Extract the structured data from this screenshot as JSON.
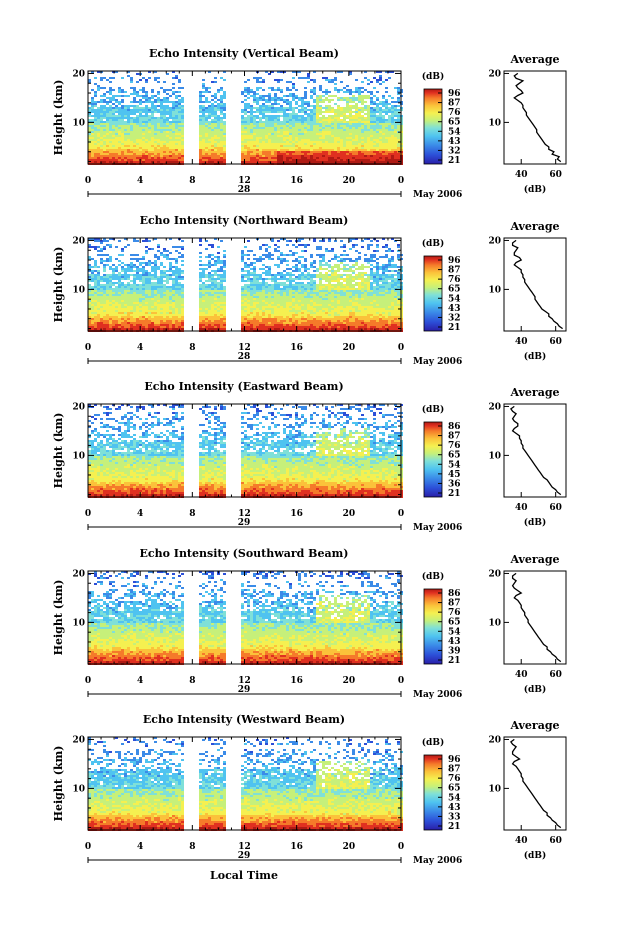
{
  "chart_data": {
    "type": "heatmap",
    "panel_titles": [
      "Echo Intensity (Vertical Beam)",
      "Echo Intensity (Northward Beam)",
      "Echo Intensity (Eastward Beam)",
      "Echo Intensity (Southward Beam)",
      "Echo Intensity (Westward Beam)"
    ],
    "ylabel": "Height (km)",
    "xlabel": "Local Time",
    "x_ticks": [
      "0",
      "4",
      "8",
      "12",
      "16",
      "20",
      "0"
    ],
    "y_ticks": [
      "10",
      "20"
    ],
    "xlim": [
      0,
      24
    ],
    "ylim": [
      1.5,
      20.5
    ],
    "day_labels": [
      "28",
      "28",
      "29",
      "29",
      "29"
    ],
    "date_label": "May 2006",
    "colorbar": {
      "unit": "(dB)",
      "ticks": [
        [
          "96",
          "87",
          "76",
          "65",
          "54",
          "43",
          "32",
          "21"
        ],
        [
          "96",
          "87",
          "76",
          "65",
          "54",
          "43",
          "32",
          "21"
        ],
        [
          "86",
          "87",
          "76",
          "65",
          "54",
          "45",
          "36",
          "21"
        ],
        [
          "86",
          "87",
          "76",
          "65",
          "54",
          "43",
          "39",
          "21"
        ],
        [
          "96",
          "87",
          "76",
          "65",
          "54",
          "43",
          "33",
          "21"
        ]
      ],
      "colors": [
        "#2a1ea8",
        "#2c4fd8",
        "#3b8be8",
        "#4fc3f0",
        "#7fe0d8",
        "#c6f07a",
        "#f5f050",
        "#fbc23a",
        "#f57a2a",
        "#e03020",
        "#b01a14"
      ]
    },
    "data_gaps_hours": [
      [
        7.5,
        8.5
      ],
      [
        10.8,
        11.6
      ]
    ],
    "average": {
      "title": "Average",
      "xlabel": "(dB)",
      "x_ticks": [
        [
          "40",
          "60"
        ],
        [
          "40",
          "60"
        ],
        [
          "40",
          "60"
        ],
        [
          "40",
          "60"
        ],
        [
          "40",
          "60"
        ]
      ],
      "y_ticks": [
        "10",
        "20"
      ],
      "xlim": [
        30,
        66
      ],
      "profile_height_km": [
        2.0,
        2.5,
        3.0,
        3.5,
        4.0,
        4.5,
        5.0,
        5.5,
        6.0,
        6.5,
        7.0,
        7.5,
        8.0,
        8.5,
        9.0,
        9.5,
        10.0,
        10.5,
        11.0,
        11.5,
        12.0,
        12.5,
        13.0,
        13.5,
        14.0,
        14.5,
        15.0,
        15.5,
        16.0,
        16.5,
        17.0,
        17.5,
        18.0,
        18.5,
        19.0,
        19.5,
        20.0
      ],
      "profiles_db": [
        [
          63,
          61,
          62,
          58,
          59,
          56,
          56,
          54,
          53,
          52,
          51,
          50,
          49,
          49,
          48,
          47,
          46,
          45,
          44,
          43,
          43,
          42,
          41,
          41,
          40,
          38,
          36,
          38,
          41,
          40,
          38,
          37,
          39,
          41,
          37,
          36,
          38
        ],
        [
          64,
          62,
          61,
          59,
          58,
          56,
          56,
          54,
          52,
          51,
          50,
          49,
          48,
          48,
          47,
          46,
          45,
          44,
          43,
          42,
          42,
          41,
          41,
          40,
          40,
          38,
          36,
          37,
          40,
          39,
          36,
          36,
          37,
          38,
          35,
          35,
          37
        ],
        [
          63,
          61,
          60,
          58,
          57,
          56,
          55,
          53,
          52,
          51,
          50,
          49,
          48,
          47,
          46,
          45,
          44,
          43,
          42,
          41,
          41,
          40,
          40,
          39,
          39,
          37,
          35,
          36,
          38,
          38,
          36,
          35,
          36,
          37,
          35,
          34,
          36
        ],
        [
          63,
          61,
          60,
          58,
          57,
          55,
          55,
          53,
          52,
          51,
          50,
          49,
          48,
          47,
          46,
          45,
          44,
          44,
          43,
          42,
          42,
          41,
          40,
          40,
          39,
          38,
          36,
          37,
          40,
          38,
          36,
          35,
          36,
          37,
          35,
          35,
          37
        ],
        [
          63,
          61,
          60,
          58,
          57,
          55,
          55,
          53,
          52,
          51,
          50,
          49,
          48,
          47,
          46,
          45,
          44,
          43,
          42,
          41,
          41,
          40,
          40,
          39,
          38,
          37,
          35,
          36,
          39,
          37,
          35,
          35,
          36,
          37,
          35,
          34,
          36
        ]
      ]
    }
  }
}
